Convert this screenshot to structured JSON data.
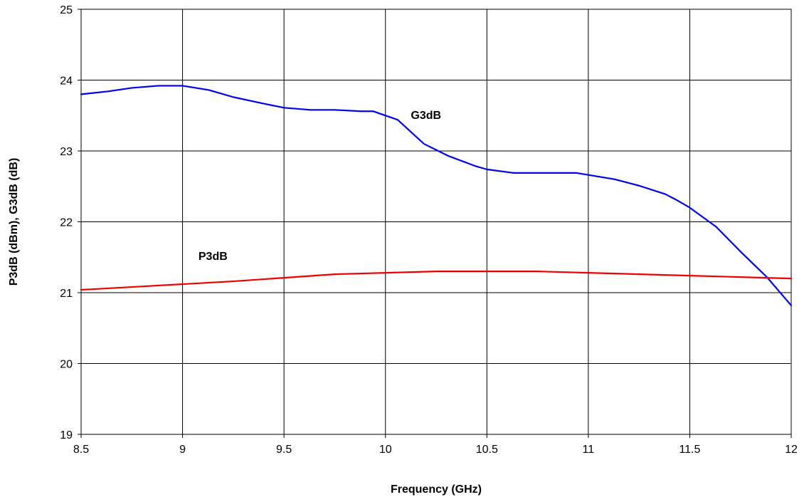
{
  "chart_data": {
    "type": "line",
    "title": "",
    "xlabel": "Frequency (GHz)",
    "ylabel": "P3dB (dBm), G3dB (dB)",
    "xlim": [
      8.5,
      12
    ],
    "ylim": [
      19,
      25
    ],
    "xticks": [
      8.5,
      9,
      9.5,
      10,
      10.5,
      11,
      11.5,
      12
    ],
    "xtick_labels": [
      "8.5",
      "9",
      "9.5",
      "10",
      "10.5",
      "11",
      "11.5",
      "12"
    ],
    "yticks": [
      19,
      20,
      21,
      22,
      23,
      24,
      25
    ],
    "ytick_labels": [
      "19",
      "20",
      "21",
      "22",
      "23",
      "24",
      "25"
    ],
    "grid": true,
    "legend": "none",
    "series": [
      {
        "name": "G3dB",
        "color": "#0000ee",
        "x": [
          8.5,
          8.63,
          8.75,
          8.88,
          9.0,
          9.13,
          9.25,
          9.38,
          9.5,
          9.63,
          9.75,
          9.88,
          9.94,
          10.06,
          10.19,
          10.31,
          10.44,
          10.5,
          10.63,
          10.75,
          10.88,
          10.94,
          11.13,
          11.25,
          11.38,
          11.44,
          11.5,
          11.63,
          11.75,
          11.88,
          12.0
        ],
        "values": [
          23.8,
          23.84,
          23.89,
          23.92,
          23.92,
          23.86,
          23.76,
          23.68,
          23.61,
          23.58,
          23.58,
          23.56,
          23.56,
          23.44,
          23.1,
          22.93,
          22.79,
          22.74,
          22.69,
          22.69,
          22.69,
          22.69,
          22.6,
          22.51,
          22.39,
          22.3,
          22.2,
          21.93,
          21.58,
          21.22,
          20.82
        ]
      },
      {
        "name": "P3dB",
        "color": "#ee0000",
        "x": [
          8.5,
          8.75,
          9.0,
          9.25,
          9.5,
          9.75,
          10.0,
          10.25,
          10.5,
          10.75,
          11.0,
          11.25,
          11.5,
          11.75,
          12.0
        ],
        "values": [
          21.04,
          21.08,
          21.12,
          21.16,
          21.21,
          21.26,
          21.28,
          21.3,
          21.3,
          21.3,
          21.28,
          21.26,
          21.24,
          21.22,
          21.2
        ]
      }
    ],
    "annotations": [
      {
        "text": "G3dB",
        "x": 10.2,
        "y": 23.45
      },
      {
        "text": "P3dB",
        "x": 9.15,
        "y": 21.46
      }
    ]
  }
}
